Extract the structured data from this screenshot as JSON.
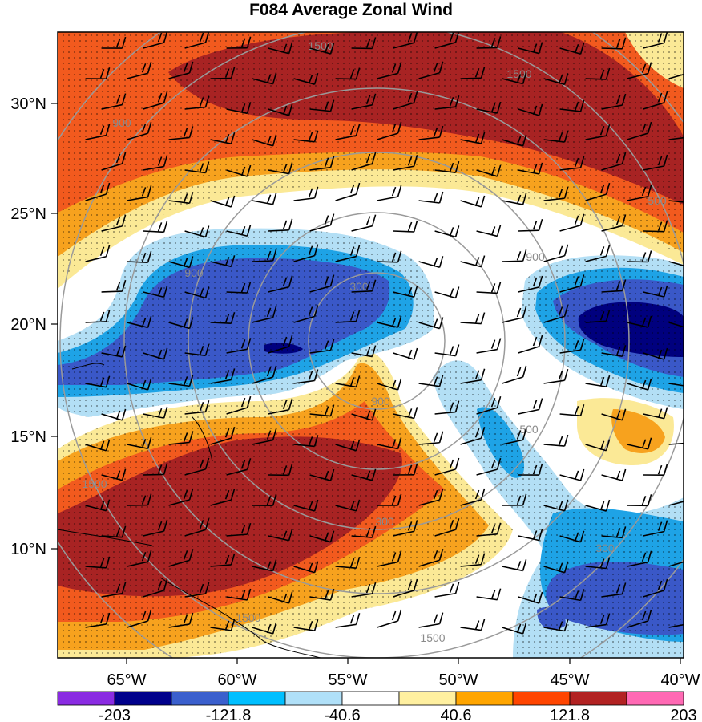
{
  "title": "F084 Average Zonal Wind",
  "map": {
    "lat_labels": [
      "30°N",
      "25°N",
      "20°N",
      "15°N",
      "10°N"
    ],
    "lon_labels": [
      "65°W",
      "60°W",
      "55°W",
      "50°W",
      "45°W",
      "40°W"
    ],
    "contour_labels": [
      "1500",
      "1500",
      "500",
      "900",
      "300",
      "900",
      "300",
      "900",
      "500",
      "1500",
      "1500",
      "1500",
      "900",
      "300"
    ]
  },
  "colorbar": {
    "colors": [
      "#8a2be2",
      "#00008b",
      "#3a5fcd",
      "#00bfff",
      "#b0e0f8",
      "#ffffff",
      "#fff0a0",
      "#ffa500",
      "#ff4500",
      "#b22222",
      "#ff69b4"
    ],
    "labels": [
      "-203",
      "-121.8",
      "-40.6",
      "40.6",
      "121.8",
      "203"
    ]
  },
  "palette": {
    "dark_red": "#a82323",
    "red_orange": "#f25a1e",
    "orange": "#f7a21e",
    "light_yellow": "#fbe996",
    "light_blue": "#b3dff5",
    "blue": "#1ea3e6",
    "medium_blue": "#3a58c8",
    "dark_blue": "#00007e",
    "ring_gray": "#9a9a9a"
  }
}
